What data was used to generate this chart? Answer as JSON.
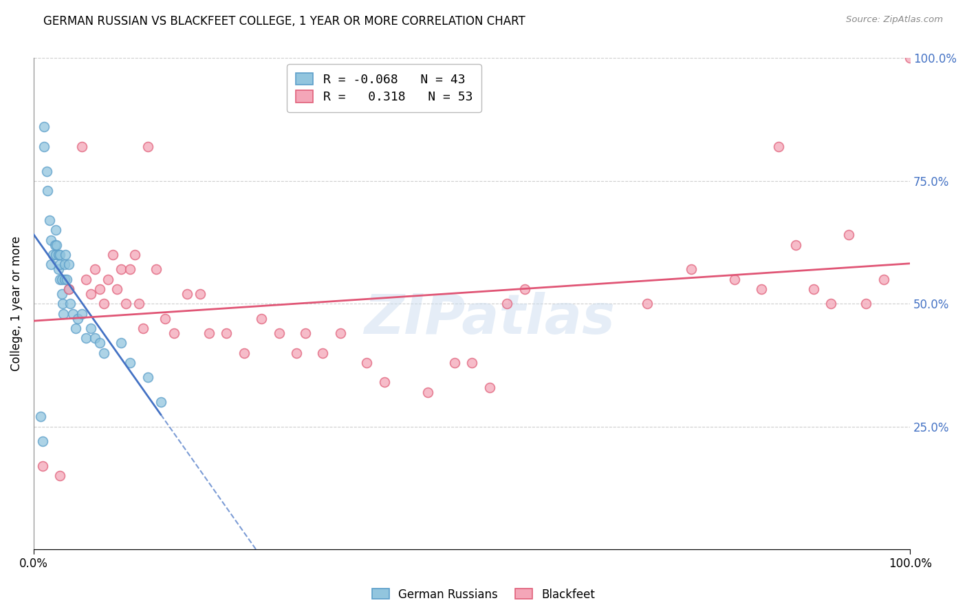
{
  "title": "GERMAN RUSSIAN VS BLACKFEET COLLEGE, 1 YEAR OR MORE CORRELATION CHART",
  "source_text": "Source: ZipAtlas.com",
  "ylabel": "College, 1 year or more",
  "xlim": [
    0.0,
    1.0
  ],
  "ylim": [
    0.0,
    1.0
  ],
  "legend_blue_R": "-0.068",
  "legend_blue_N": "43",
  "legend_pink_R": "0.318",
  "legend_pink_N": "53",
  "blue_color": "#92c5de",
  "pink_color": "#f4a6b8",
  "blue_edge_color": "#5b9ec9",
  "pink_edge_color": "#e0607a",
  "blue_line_color": "#4472c4",
  "pink_line_color": "#e05575",
  "right_axis_color": "#4472c4",
  "watermark": "ZIPatlas",
  "background_color": "#ffffff",
  "grid_color": "#c8c8c8",
  "german_russian_x": [
    0.008,
    0.01,
    0.012,
    0.012,
    0.015,
    0.016,
    0.018,
    0.02,
    0.02,
    0.022,
    0.024,
    0.025,
    0.025,
    0.026,
    0.028,
    0.028,
    0.03,
    0.03,
    0.03,
    0.032,
    0.032,
    0.033,
    0.034,
    0.035,
    0.035,
    0.036,
    0.038,
    0.04,
    0.04,
    0.042,
    0.045,
    0.048,
    0.05,
    0.055,
    0.06,
    0.065,
    0.07,
    0.075,
    0.08,
    0.1,
    0.11,
    0.13,
    0.145
  ],
  "german_russian_y": [
    0.27,
    0.22,
    0.86,
    0.82,
    0.77,
    0.73,
    0.67,
    0.63,
    0.58,
    0.6,
    0.62,
    0.65,
    0.6,
    0.62,
    0.6,
    0.57,
    0.58,
    0.6,
    0.55,
    0.55,
    0.52,
    0.5,
    0.48,
    0.55,
    0.58,
    0.6,
    0.55,
    0.58,
    0.53,
    0.5,
    0.48,
    0.45,
    0.47,
    0.48,
    0.43,
    0.45,
    0.43,
    0.42,
    0.4,
    0.42,
    0.38,
    0.35,
    0.3
  ],
  "blackfeet_x": [
    0.01,
    0.03,
    0.04,
    0.055,
    0.06,
    0.065,
    0.07,
    0.075,
    0.08,
    0.085,
    0.09,
    0.095,
    0.1,
    0.105,
    0.11,
    0.115,
    0.12,
    0.125,
    0.13,
    0.14,
    0.15,
    0.16,
    0.175,
    0.19,
    0.2,
    0.22,
    0.24,
    0.26,
    0.28,
    0.3,
    0.31,
    0.33,
    0.35,
    0.38,
    0.4,
    0.45,
    0.48,
    0.5,
    0.52,
    0.54,
    0.56,
    0.7,
    0.75,
    0.8,
    0.83,
    0.85,
    0.87,
    0.89,
    0.91,
    0.93,
    0.95,
    0.97,
    1.0
  ],
  "blackfeet_y": [
    0.17,
    0.15,
    0.53,
    0.82,
    0.55,
    0.52,
    0.57,
    0.53,
    0.5,
    0.55,
    0.6,
    0.53,
    0.57,
    0.5,
    0.57,
    0.6,
    0.5,
    0.45,
    0.82,
    0.57,
    0.47,
    0.44,
    0.52,
    0.52,
    0.44,
    0.44,
    0.4,
    0.47,
    0.44,
    0.4,
    0.44,
    0.4,
    0.44,
    0.38,
    0.34,
    0.32,
    0.38,
    0.38,
    0.33,
    0.5,
    0.53,
    0.5,
    0.57,
    0.55,
    0.53,
    0.82,
    0.62,
    0.53,
    0.5,
    0.64,
    0.5,
    0.55,
    1.0
  ]
}
